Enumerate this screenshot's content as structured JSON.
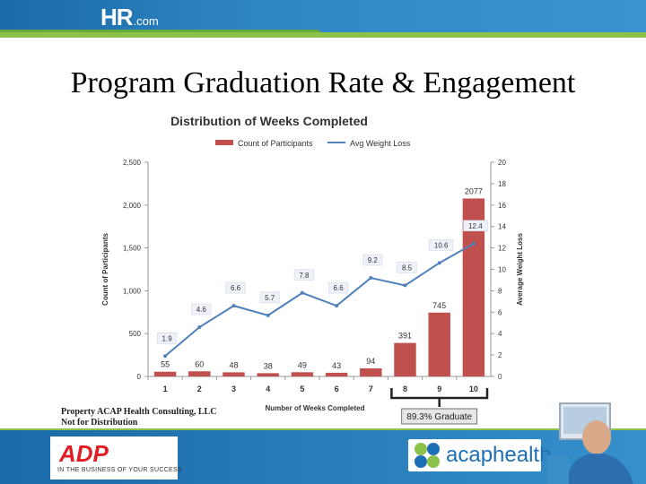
{
  "header": {
    "logo_main": "HR",
    "logo_suffix": ".com"
  },
  "slide": {
    "title": "Program Graduation Rate & Engagement",
    "footnote_line1": "Property ACAP Health Consulting, LLC",
    "footnote_line2": "Not for Distribution"
  },
  "footer": {
    "adp_logo": "ADP",
    "adp_tagline": "IN THE BUSINESS OF YOUR SUCCESS",
    "acap_logo": "acaphealth"
  },
  "colors": {
    "bar": "#c0504d",
    "line": "#4f81bd",
    "header": "#2f86c4",
    "accent_green": "#8bc34a"
  },
  "chart_data": {
    "type": "bar",
    "title": "Distribution of Weeks Completed",
    "xlabel": "Number of Weeks Completed",
    "ylabel": "Count of Participants",
    "y2label": "Average Weight Loss",
    "categories": [
      "1",
      "2",
      "3",
      "4",
      "5",
      "6",
      "7",
      "8",
      "9",
      "10"
    ],
    "ylim": [
      0,
      2500
    ],
    "yticks": [
      "0",
      "500",
      "1,000",
      "1,500",
      "2,000",
      "2,500"
    ],
    "y2lim": [
      0,
      20
    ],
    "y2ticks": [
      "0",
      "2",
      "4",
      "6",
      "8",
      "10",
      "12",
      "14",
      "16",
      "18",
      "20"
    ],
    "grid": false,
    "legend_position": "top",
    "series": [
      {
        "name": "Count of Participants",
        "type": "bar",
        "color": "#c0504d",
        "values": [
          55,
          60,
          48,
          38,
          49,
          43,
          94,
          391,
          745,
          2077
        ],
        "labels": [
          "55",
          "60",
          "48",
          "38",
          "49",
          "43",
          "94",
          "391",
          "745",
          "2077"
        ]
      },
      {
        "name": "Avg Weight Loss",
        "type": "line",
        "color": "#4f81bd",
        "values": [
          1.9,
          4.6,
          6.6,
          5.7,
          7.8,
          6.6,
          9.2,
          8.5,
          10.6,
          12.4
        ],
        "labels": [
          "1.9",
          "4.6",
          "6.6",
          "5.7",
          "7.8",
          "6.6",
          "9.2",
          "8.5",
          "10.6",
          "12.4"
        ]
      }
    ],
    "annotation": "89.3% Graduate"
  }
}
